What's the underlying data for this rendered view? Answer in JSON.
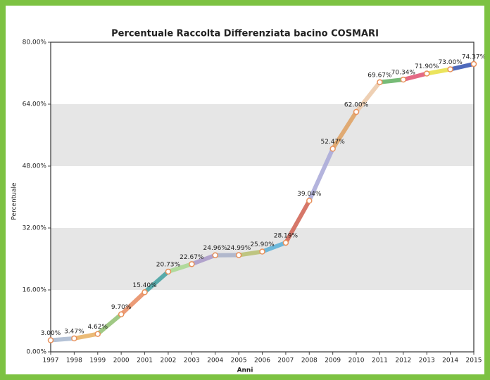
{
  "chart_data": {
    "type": "line",
    "title": "Percentuale Raccolta Differenziata bacino COSMARI",
    "x_label": "Anni",
    "y_label": "Percentuale",
    "categories": [
      "1997",
      "1998",
      "1999",
      "2000",
      "2001",
      "2002",
      "2003",
      "2004",
      "2005",
      "2006",
      "2007",
      "2008",
      "2009",
      "2010",
      "2011",
      "2012",
      "2013",
      "2014",
      "2015"
    ],
    "series": [
      {
        "name": "Percentuale",
        "values": [
          3.0,
          3.47,
          4.62,
          9.7,
          15.4,
          20.73,
          22.67,
          24.96,
          24.99,
          25.9,
          28.19,
          39.04,
          52.47,
          62.0,
          69.67,
          70.34,
          71.9,
          73.0,
          74.37
        ],
        "value_labels": [
          "3.00%",
          "3.47%",
          "4.62%",
          "9.70%",
          "15.40%",
          "20.73%",
          "22.67%",
          "24.96%",
          "24.99%",
          "25.90%",
          "28.19%",
          "39.04%",
          "52.47%",
          "62.00%",
          "69.67%",
          "70.34%",
          "71.90%",
          "73.00%",
          "74.37%"
        ],
        "colors": [
          "#a8b8d0",
          "#a8b8d0",
          "#e8b060",
          "#90c070",
          "#e88a60",
          "#40a0a0",
          "#a8d890",
          "#a898c8",
          "#a8b0c8",
          "#b8c070",
          "#58b0d8",
          "#d06050",
          "#a8a8d8",
          "#e0a060",
          "#ecc8a8",
          "#60b060",
          "#e05070",
          "#e8e040",
          "#3050b0"
        ],
        "marker_color": "#e8905a"
      }
    ],
    "ylim": [
      0,
      80
    ],
    "yticks": [
      {
        "value": 0,
        "label": "0.00%"
      },
      {
        "value": 16,
        "label": "16.00%"
      },
      {
        "value": 32,
        "label": "32.00%"
      },
      {
        "value": 48,
        "label": "48.00%"
      },
      {
        "value": 64,
        "label": "64.00%"
      },
      {
        "value": 80,
        "label": "80.00%"
      }
    ],
    "grid": "bands"
  }
}
